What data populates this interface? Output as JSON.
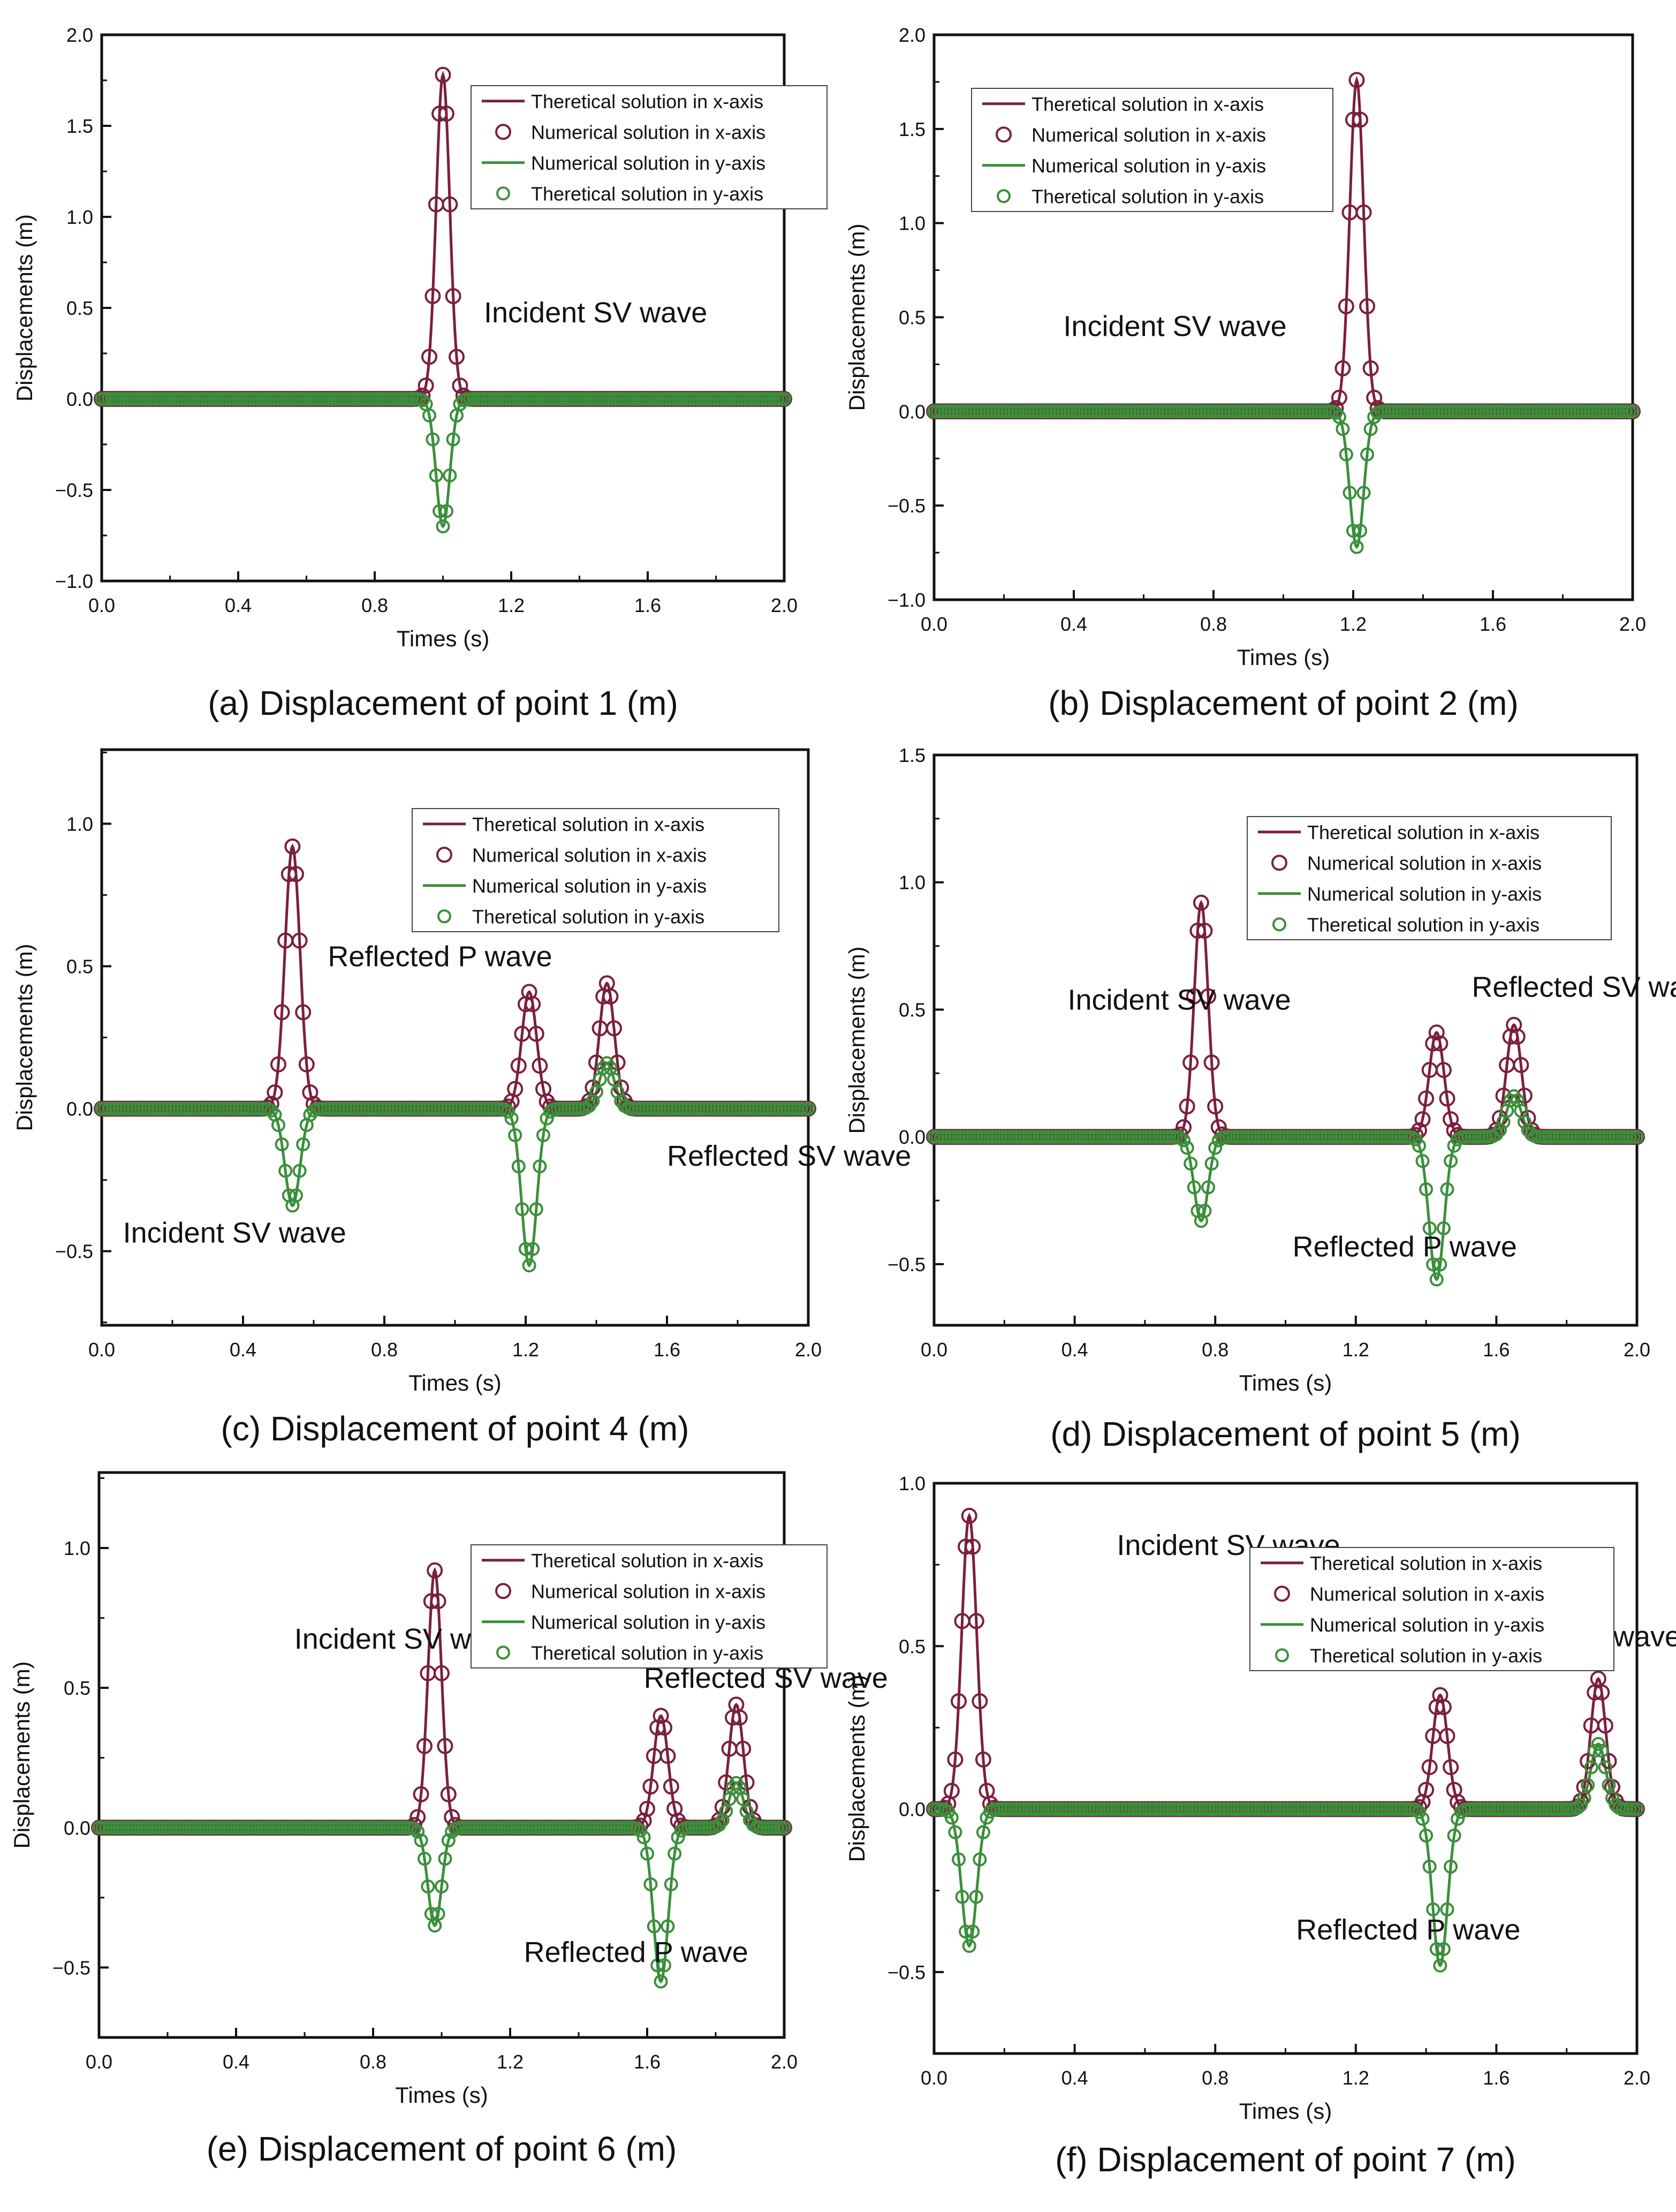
{
  "colors": {
    "x_series": "#7b1f3e",
    "y_series": "#3a8f3a"
  },
  "legend_labels": [
    "Theretical solution in x-axis",
    "Numerical solution in x-axis",
    "Numerical solution in y-axis",
    "Theretical solution in y-axis"
  ],
  "chart_data": [
    {
      "type": "line",
      "caption": "(a) Displacement of point 1 (m)",
      "xlabel": "Times (s)",
      "ylabel": "Displacements (m)",
      "xlim": [
        0,
        2
      ],
      "ylim": [
        -1.0,
        2.0
      ],
      "xticks": [
        0,
        0.4,
        0.8,
        1.2,
        1.6,
        2.0
      ],
      "xtick_labels": [
        "0.0",
        "0.4",
        "0.8",
        "1.2",
        "1.6",
        "2.0"
      ],
      "yticks": [
        -1.0,
        -0.5,
        0.0,
        0.5,
        1.0,
        1.5,
        2.0
      ],
      "ytick_labels": [
        "−1.0",
        "−0.5",
        "0.0",
        "0.5",
        "1.0",
        "1.5",
        "2.0"
      ],
      "legend_position": "top-right",
      "pulses_x": [
        {
          "center": 1.0,
          "amplitude": 1.78,
          "width": 0.028
        }
      ],
      "pulses_y": [
        {
          "center": 1.0,
          "amplitude": -0.7,
          "width": 0.028
        }
      ],
      "annotations": [
        {
          "text": "Incident SV wave",
          "x": 1.12,
          "y": 0.42
        }
      ]
    },
    {
      "type": "line",
      "caption": "(b) Displacement of point 2 (m)",
      "xlabel": "Times (s)",
      "ylabel": "Displacements (m)",
      "xlim": [
        0,
        2
      ],
      "ylim": [
        -1.0,
        2.0
      ],
      "xticks": [
        0,
        0.4,
        0.8,
        1.2,
        1.6,
        2.0
      ],
      "xtick_labels": [
        "0.0",
        "0.4",
        "0.8",
        "1.2",
        "1.6",
        "2.0"
      ],
      "yticks": [
        -1.0,
        -0.5,
        0.0,
        0.5,
        1.0,
        1.5,
        2.0
      ],
      "ytick_labels": [
        "−1.0",
        "−0.5",
        "0.0",
        "0.5",
        "1.0",
        "1.5",
        "2.0"
      ],
      "legend_position": "top-right",
      "pulses_x": [
        {
          "center": 1.21,
          "amplitude": 1.76,
          "width": 0.028
        }
      ],
      "pulses_y": [
        {
          "center": 1.21,
          "amplitude": -0.72,
          "width": 0.028
        }
      ],
      "annotations": [
        {
          "text": "Incident SV wave",
          "x": 0.37,
          "y": 0.4
        }
      ]
    },
    {
      "type": "line",
      "caption": "(c) Displacement of point 4 (m)",
      "xlabel": "Times (s)",
      "ylabel": "Displacements (m)",
      "xlim": [
        0,
        2
      ],
      "ylim": [
        -0.76,
        1.26
      ],
      "xticks": [
        0,
        0.4,
        0.8,
        1.2,
        1.6,
        2.0
      ],
      "xtick_labels": [
        "0.0",
        "0.4",
        "0.8",
        "1.2",
        "1.6",
        "2.0"
      ],
      "yticks": [
        -0.5,
        0.0,
        0.5,
        1.0
      ],
      "ytick_labels": [
        "−0.5",
        "0.0",
        "0.5",
        "1.0"
      ],
      "legend_position": "top-right",
      "pulses_x": [
        {
          "center": 0.54,
          "amplitude": 0.92,
          "width": 0.03
        },
        {
          "center": 1.21,
          "amplitude": 0.41,
          "width": 0.03
        },
        {
          "center": 1.43,
          "amplitude": 0.44,
          "width": 0.03
        }
      ],
      "pulses_y": [
        {
          "center": 0.54,
          "amplitude": -0.34,
          "width": 0.03
        },
        {
          "center": 1.21,
          "amplitude": -0.55,
          "width": 0.03
        },
        {
          "center": 1.43,
          "amplitude": 0.16,
          "width": 0.03
        }
      ],
      "annotations": [
        {
          "text": "Reflected P wave",
          "x": 0.64,
          "y": 0.5
        },
        {
          "text": "Reflected SV wave",
          "x": 1.6,
          "y": -0.2
        },
        {
          "text": "Incident SV wave",
          "x": 0.06,
          "y": -0.47
        }
      ]
    },
    {
      "type": "line",
      "caption": "(d) Displacement of point 5 (m)",
      "xlabel": "Times (s)",
      "ylabel": "Displacements (m)",
      "xlim": [
        0,
        2
      ],
      "ylim": [
        -0.74,
        1.5
      ],
      "xticks": [
        0,
        0.4,
        0.8,
        1.2,
        1.6,
        2.0
      ],
      "xtick_labels": [
        "0.0",
        "0.4",
        "0.8",
        "1.2",
        "1.6",
        "2.0"
      ],
      "yticks": [
        -0.5,
        0.0,
        0.5,
        1.0,
        1.5
      ],
      "ytick_labels": [
        "−0.5",
        "0.0",
        "0.5",
        "1.0",
        "1.5"
      ],
      "legend_position": "top-right",
      "pulses_x": [
        {
          "center": 0.76,
          "amplitude": 0.92,
          "width": 0.028
        },
        {
          "center": 1.43,
          "amplitude": 0.41,
          "width": 0.03
        },
        {
          "center": 1.65,
          "amplitude": 0.44,
          "width": 0.03
        }
      ],
      "pulses_y": [
        {
          "center": 0.76,
          "amplitude": -0.33,
          "width": 0.028
        },
        {
          "center": 1.43,
          "amplitude": -0.56,
          "width": 0.03
        },
        {
          "center": 1.65,
          "amplitude": 0.16,
          "width": 0.03
        }
      ],
      "annotations": [
        {
          "text": "Incident SV wave",
          "x": 0.38,
          "y": 0.5
        },
        {
          "text": "Reflected SV wave",
          "x": 1.53,
          "y": 0.55
        },
        {
          "text": "Reflected P wave",
          "x": 1.02,
          "y": -0.47
        }
      ]
    },
    {
      "type": "line",
      "caption": "(e) Displacement of point 6 (m)",
      "xlabel": "Times (s)",
      "ylabel": "Displacements (m)",
      "xlim": [
        0,
        2
      ],
      "ylim": [
        -0.75,
        1.27
      ],
      "xticks": [
        0,
        0.4,
        0.8,
        1.2,
        1.6,
        2.0
      ],
      "xtick_labels": [
        "0.0",
        "0.4",
        "0.8",
        "1.2",
        "1.6",
        "2.0"
      ],
      "yticks": [
        -0.5,
        0.0,
        0.5,
        1.0
      ],
      "ytick_labels": [
        "−0.5",
        "0.0",
        "0.5",
        "1.0"
      ],
      "legend_position": "top-right",
      "pulses_x": [
        {
          "center": 0.98,
          "amplitude": 0.92,
          "width": 0.028
        },
        {
          "center": 1.64,
          "amplitude": 0.4,
          "width": 0.03
        },
        {
          "center": 1.86,
          "amplitude": 0.44,
          "width": 0.03
        }
      ],
      "pulses_y": [
        {
          "center": 0.98,
          "amplitude": -0.35,
          "width": 0.028
        },
        {
          "center": 1.64,
          "amplitude": -0.55,
          "width": 0.03
        },
        {
          "center": 1.86,
          "amplitude": 0.16,
          "width": 0.03
        }
      ],
      "annotations": [
        {
          "text": "Incident SV wave",
          "x": 0.57,
          "y": 0.64
        },
        {
          "text": "Reflected SV wave",
          "x": 1.59,
          "y": 0.5
        },
        {
          "text": "Reflected P wave",
          "x": 1.24,
          "y": -0.48
        }
      ]
    },
    {
      "type": "line",
      "caption": "(f) Displacement of point 7 (m)",
      "xlabel": "Times (s)",
      "ylabel": "Displacements (m)",
      "xlim": [
        0,
        2
      ],
      "ylim": [
        -0.75,
        1.0
      ],
      "xticks": [
        0,
        0.4,
        0.8,
        1.2,
        1.6,
        2.0
      ],
      "xtick_labels": [
        "0.0",
        "0.4",
        "0.8",
        "1.2",
        "1.6",
        "2.0"
      ],
      "yticks": [
        -0.5,
        0.0,
        0.5,
        1.0
      ],
      "ytick_labels": [
        "−0.5",
        "0.0",
        "0.5",
        "1.0"
      ],
      "legend_position": "top-right",
      "pulses_x": [
        {
          "center": 0.1,
          "amplitude": 0.9,
          "width": 0.03
        },
        {
          "center": 1.44,
          "amplitude": 0.35,
          "width": 0.03
        },
        {
          "center": 1.89,
          "amplitude": 0.4,
          "width": 0.03
        }
      ],
      "pulses_y": [
        {
          "center": 0.1,
          "amplitude": -0.42,
          "width": 0.03
        },
        {
          "center": 1.44,
          "amplitude": -0.48,
          "width": 0.03
        },
        {
          "center": 1.89,
          "amplitude": 0.2,
          "width": 0.03
        }
      ],
      "annotations": [
        {
          "text": "Incident SV wave",
          "x": 0.52,
          "y": 0.78
        },
        {
          "text": "Reflected SV wave",
          "x": 1.43,
          "y": 0.5
        },
        {
          "text": "Reflected P wave",
          "x": 1.03,
          "y": -0.4
        }
      ]
    }
  ]
}
